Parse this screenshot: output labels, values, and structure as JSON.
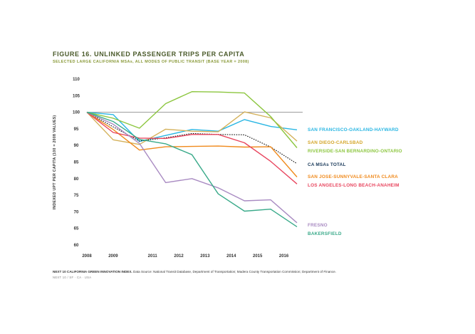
{
  "header": {
    "title": "FIGURE 16. UNLINKED PASSENGER TRIPS PER CAPITA",
    "subtitle": "SELECTED LARGE CALIFORNIA MSAs, ALL MODES OF PUBLIC TRANSIT (BASE YEAR = 2008)"
  },
  "footer": {
    "source_bold": "NEXT 10 CALIFORNIA GREEN INNOVATION INDEX.",
    "source_text": " Data Source: National Transit Database, Department of Transportation; Madera County Transportation Commission; Department of Finance.",
    "brand": "NEXT 10  /  SF · CA · USA"
  },
  "chart_data": {
    "type": "line",
    "ylabel": "INDEXED UPT PER CAPITA (100 = 2008 VALUES)",
    "xlabel": "",
    "x": [
      2008,
      2009,
      2010,
      2011,
      2012,
      2013,
      2014,
      2015,
      2016
    ],
    "xticks": [
      "2008",
      "2009",
      "2011",
      "2012",
      "2013",
      "2014",
      "2015",
      "2016"
    ],
    "xtick_positions": [
      2008,
      2009,
      2010.5,
      2011.5,
      2012.5,
      2013.5,
      2014.5,
      2015.5
    ],
    "ylim": [
      60,
      110
    ],
    "yticks": [
      "60",
      "65",
      "70",
      "75",
      "80",
      "85",
      "90",
      "95",
      "100",
      "105",
      "110"
    ],
    "baseline": 100,
    "series": [
      {
        "name": "SAN FRANCISCO-OAKLAND-HAYWARD",
        "color": "#29b6e3",
        "dashed": false,
        "values": [
          100,
          99.3,
          91.2,
          93,
          94.8,
          94.3,
          97.8,
          95.7,
          94.7
        ]
      },
      {
        "name": "SAN DIEGO-CARLSBAD",
        "color": "#d4b15a",
        "dashed": false,
        "values": [
          100,
          91.7,
          90.3,
          94.9,
          94.3,
          94.1,
          100.1,
          98.3,
          91.3
        ]
      },
      {
        "name": "RIVERSIDE-SAN BERNARDINO-ONTARIO",
        "color": "#8cc63f",
        "dashed": false,
        "values": [
          100,
          98.2,
          95.2,
          102.6,
          106.2,
          106.1,
          105.8,
          98.7,
          89.3
        ]
      },
      {
        "name": "CA MSAs TOTAL",
        "color": "#111111",
        "dashed": true,
        "values": [
          100,
          95.6,
          91.3,
          92.3,
          93.6,
          93.3,
          93.2,
          89.5,
          84.5
        ]
      },
      {
        "name": "SAN JOSE-SUNNYVALE-SANTA CLARA",
        "color": "#f08a1c",
        "dashed": false,
        "values": [
          100,
          94.8,
          88.6,
          89.6,
          89.7,
          89.8,
          89.5,
          89.6,
          80.5
        ]
      },
      {
        "name": "LOS ANGELES-LONG BEACH-ANAHEIM",
        "color": "#e8455e",
        "dashed": false,
        "values": [
          100,
          93.9,
          92.2,
          92.1,
          93.3,
          93.3,
          90.8,
          85.2,
          78.4
        ]
      },
      {
        "name": "FRESNO",
        "color": "#a98bc2",
        "dashed": false,
        "values": [
          100,
          96.4,
          90.6,
          78.8,
          80,
          77.2,
          73.3,
          73.6,
          66.7
        ]
      },
      {
        "name": "BAKERSFIELD",
        "color": "#3aaa8a",
        "dashed": false,
        "values": [
          100,
          97.2,
          91.8,
          90.5,
          87.2,
          75.4,
          70.2,
          70.8,
          65.5
        ]
      }
    ],
    "legend": [
      {
        "label": "SAN FRANCISCO-OAKLAND-HAYWARD",
        "color": "#29b6e3"
      },
      {
        "label": "SAN DIEGO-CARLSBAD",
        "color": "#d4a62a"
      },
      {
        "label": "RIVERSIDE-SAN BERNARDINO-ONTARIO",
        "color": "#8cc63f"
      },
      {
        "label": "CA MSAs TOTAL",
        "color": "#1a3a5a"
      },
      {
        "label": "SAN JOSE-SUNNYVALE-SANTA CLARA",
        "color": "#f08a1c"
      },
      {
        "label": "LOS ANGELES-LONG BEACH-ANAHEIM",
        "color": "#e8455e"
      },
      {
        "label": "FRESNO",
        "color": "#a98bc2"
      },
      {
        "label": "BAKERSFIELD",
        "color": "#3aaa8a"
      }
    ],
    "grid": false,
    "legend_placement": "right"
  }
}
